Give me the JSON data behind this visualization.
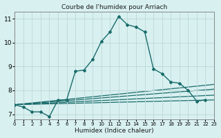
{
  "title": "Courbe de l'humidex pour Arriach",
  "xlabel": "Humidex (Indice chaleur)",
  "ylabel": "",
  "bg_color": "#d8f0f0",
  "grid_color": "#c0dada",
  "line_color": "#1a6b6b",
  "xlim": [
    0,
    23
  ],
  "ylim": [
    6.8,
    11.3
  ],
  "xticks": [
    0,
    1,
    2,
    3,
    4,
    5,
    6,
    7,
    8,
    9,
    10,
    11,
    12,
    13,
    14,
    15,
    16,
    17,
    18,
    19,
    20,
    21,
    22,
    23
  ],
  "yticks": [
    7,
    8,
    9,
    10,
    11
  ],
  "main_x": [
    0,
    1,
    2,
    3,
    4,
    5,
    6,
    7,
    8,
    9,
    10,
    11,
    12,
    13,
    14,
    15,
    16,
    17,
    18,
    19,
    20,
    21,
    22
  ],
  "main_y": [
    7.4,
    7.3,
    7.1,
    7.1,
    6.9,
    7.6,
    7.6,
    8.8,
    8.85,
    9.3,
    10.05,
    10.45,
    11.1,
    10.75,
    10.65,
    10.45,
    8.9,
    8.7,
    8.35,
    8.3,
    8.0,
    7.55,
    7.6
  ],
  "ref_lines": [
    {
      "x": [
        0,
        23
      ],
      "y": [
        7.4,
        7.6
      ]
    },
    {
      "x": [
        0,
        23
      ],
      "y": [
        7.4,
        7.8
      ]
    },
    {
      "x": [
        0,
        23
      ],
      "y": [
        7.4,
        8.05
      ]
    },
    {
      "x": [
        0,
        23
      ],
      "y": [
        7.4,
        8.25
      ]
    }
  ]
}
